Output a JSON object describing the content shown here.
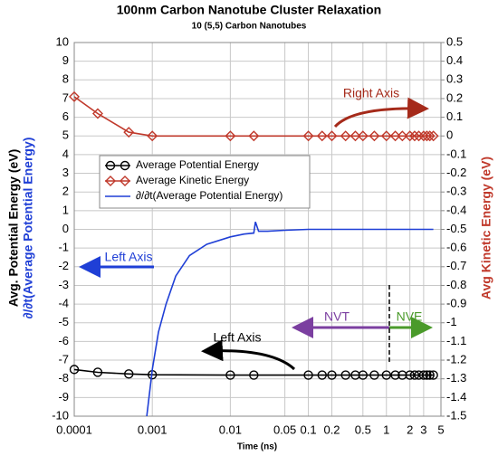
{
  "chart_data": {
    "type": "line",
    "title": "100nm Carbon Nanotube Cluster Relaxation",
    "subtitle": "10 (5,5) Carbon Nanotubes",
    "xlabel": "Time (ns)",
    "ylabel": "Avg. Potential Energy (eV)",
    "ylabel2": "∂/∂t(Average Potential Energy)",
    "y2label": "Avg Kinetic Energy (eV)",
    "xscale": "log",
    "xlim": [
      0.0001,
      5
    ],
    "xticks": [
      0.0001,
      0.001,
      0.01,
      0.05,
      0.1,
      0.2,
      0.5,
      1,
      2,
      3,
      5
    ],
    "ylim": [
      -10,
      10
    ],
    "yticks": [
      -10,
      -9,
      -8,
      -7,
      -6,
      -5,
      -4,
      -3,
      -2,
      -1,
      0,
      1,
      2,
      3,
      4,
      5,
      6,
      7,
      8,
      9,
      10
    ],
    "y2lim": [
      -1.5,
      0.5
    ],
    "y2ticks": [
      -1.5,
      -1.4,
      -1.3,
      -1.2,
      -1.1,
      -1,
      -0.9,
      -0.8,
      -0.7,
      -0.6,
      -0.5,
      -0.4,
      -0.3,
      -0.2,
      -0.1,
      0,
      0.1,
      0.2,
      0.3,
      0.4,
      0.5
    ],
    "grid": true,
    "legend": "upper left",
    "annotations": [
      "Right Axis",
      "Left Axis",
      "Left Axis",
      "NVT",
      "NVE"
    ],
    "series": [
      {
        "name": "Average Potential Energy",
        "color": "#000000",
        "marker": "circle",
        "x": [
          0.0001,
          0.0002,
          0.0005,
          0.001,
          0.01,
          0.02,
          0.1,
          0.15,
          0.2,
          0.3,
          0.4,
          0.5,
          0.7,
          1,
          1.3,
          1.6,
          2,
          2.3,
          2.6,
          3,
          3.3,
          3.6,
          4
        ],
        "values": [
          -7.5,
          -7.65,
          -7.74,
          -7.78,
          -7.8,
          -7.8,
          -7.8,
          -7.8,
          -7.8,
          -7.8,
          -7.8,
          -7.8,
          -7.8,
          -7.8,
          -7.8,
          -7.8,
          -7.8,
          -7.8,
          -7.8,
          -7.8,
          -7.8,
          -7.8,
          -7.8
        ]
      },
      {
        "name": "Average Kinetic Energy",
        "color": "#c0392b",
        "marker": "diamond",
        "axis": "y2",
        "x": [
          0.0001,
          0.0002,
          0.0005,
          0.001,
          0.01,
          0.02,
          0.1,
          0.15,
          0.2,
          0.3,
          0.4,
          0.5,
          0.7,
          1,
          1.3,
          1.6,
          2,
          2.3,
          2.6,
          3,
          3.3,
          3.6,
          4
        ],
        "values": [
          0.21,
          0.12,
          0.02,
          0,
          0,
          0,
          0,
          0,
          0,
          0,
          0,
          0,
          0,
          0,
          0,
          0,
          0,
          0,
          0,
          0,
          0,
          0,
          0
        ]
      },
      {
        "name": "∂/∂t(Average Potential Energy)",
        "color": "#1f3fd6",
        "x": [
          0.00085,
          0.001,
          0.0012,
          0.0015,
          0.002,
          0.003,
          0.005,
          0.01,
          0.015,
          0.02,
          0.021,
          0.023,
          0.03,
          0.05,
          0.1,
          0.5,
          1,
          3,
          4
        ],
        "values": [
          -10,
          -7.5,
          -5.5,
          -4,
          -2.5,
          -1.4,
          -0.8,
          -0.4,
          -0.25,
          -0.2,
          0.4,
          -0.1,
          -0.1,
          -0.05,
          0,
          0,
          0,
          0,
          0
        ]
      }
    ]
  }
}
